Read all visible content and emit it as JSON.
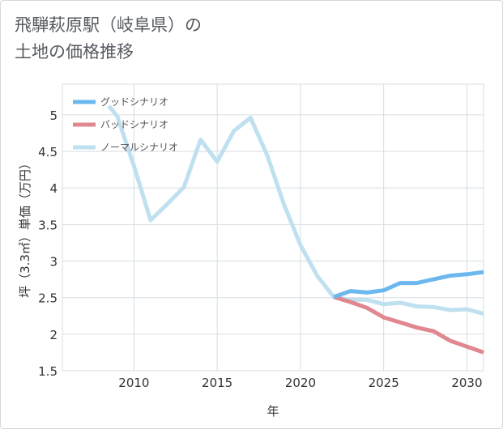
{
  "title_lines": [
    "飛騨萩原駅（岐阜県）の",
    "土地の価格推移"
  ],
  "chart_data": {
    "type": "line",
    "title": "飛騨萩原駅（岐阜県）の土地の価格推移",
    "xlabel": "年",
    "ylabel": "坪（3.3㎡）単価（万円）",
    "xlim": [
      2005.7,
      2031
    ],
    "ylim": [
      1.5,
      5.42
    ],
    "x_ticks": [
      2010,
      2015,
      2020,
      2025,
      2030
    ],
    "y_ticks": [
      1.5,
      2,
      2.5,
      3,
      3.5,
      4,
      4.5,
      5
    ],
    "grid": true,
    "legend_position": "top-left",
    "series": [
      {
        "name": "グッドシナリオ",
        "color": "#6cb8ee",
        "x": [
          2022,
          2023,
          2024,
          2025,
          2026,
          2027,
          2028,
          2029,
          2030,
          2031
        ],
        "values": [
          2.51,
          2.59,
          2.57,
          2.6,
          2.7,
          2.7,
          2.75,
          2.8,
          2.82,
          2.85
        ]
      },
      {
        "name": "バッドシナリオ",
        "color": "#e0878f",
        "x": [
          2022,
          2023,
          2024,
          2025,
          2026,
          2027,
          2028,
          2029,
          2030,
          2031
        ],
        "values": [
          2.51,
          2.44,
          2.36,
          2.23,
          2.16,
          2.09,
          2.04,
          1.91,
          1.83,
          1.75
        ]
      },
      {
        "name": "ノーマルシナリオ",
        "color": "#bfe0ef",
        "x": [
          2008.5,
          2009,
          2010,
          2011,
          2012,
          2013,
          2014,
          2015,
          2016,
          2017,
          2018,
          2019,
          2020,
          2021,
          2022,
          2023,
          2024,
          2025,
          2026,
          2027,
          2028,
          2029,
          2030,
          2031
        ],
        "values": [
          5.12,
          4.98,
          4.3,
          3.56,
          3.78,
          4.01,
          4.66,
          4.36,
          4.78,
          4.96,
          4.45,
          3.78,
          3.22,
          2.8,
          2.51,
          2.47,
          2.47,
          2.41,
          2.43,
          2.38,
          2.37,
          2.33,
          2.34,
          2.28
        ]
      }
    ]
  }
}
